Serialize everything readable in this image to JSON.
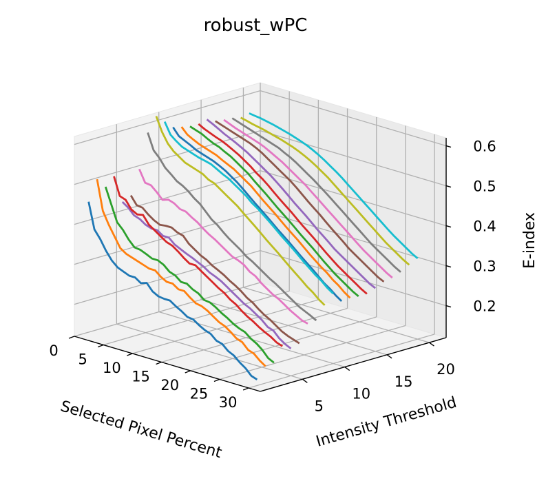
{
  "chart_data": {
    "type": "line",
    "projection": "3d",
    "title": "robust_wPC",
    "xlabel": "Selected Pixel Percent",
    "ylabel": "Intensity Threshold",
    "zlabel": "E-index",
    "xticks": [
      0,
      5,
      10,
      15,
      20,
      25,
      30
    ],
    "yticks": [
      5,
      10,
      15,
      20
    ],
    "zticks": [
      0.2,
      0.3,
      0.4,
      0.5,
      0.6
    ],
    "xlim": [
      0,
      32
    ],
    "ylim": [
      0,
      22
    ],
    "zlim": [
      0.12,
      0.62
    ],
    "grid": true,
    "x": [
      1,
      2,
      3,
      4,
      5,
      6,
      7,
      8,
      9,
      10,
      11,
      12,
      13,
      14,
      15,
      16,
      17,
      18,
      19,
      20,
      21,
      22,
      23,
      24,
      25,
      26,
      27,
      28,
      29,
      30
    ],
    "series": [
      {
        "intensity_threshold": 1,
        "color": "#1f77b4",
        "values": [
          0.455,
          0.39,
          0.37,
          0.345,
          0.325,
          0.312,
          0.306,
          0.3,
          0.3,
          0.29,
          0.295,
          0.278,
          0.27,
          0.268,
          0.268,
          0.258,
          0.25,
          0.24,
          0.238,
          0.228,
          0.22,
          0.215,
          0.202,
          0.198,
          0.185,
          0.178,
          0.165,
          0.155,
          0.14,
          0.135
        ]
      },
      {
        "intensity_threshold": 2,
        "color": "#ff7f0e",
        "values": [
          0.505,
          0.43,
          0.4,
          0.375,
          0.35,
          0.34,
          0.335,
          0.33,
          0.325,
          0.32,
          0.32,
          0.308,
          0.3,
          0.3,
          0.29,
          0.29,
          0.278,
          0.268,
          0.265,
          0.258,
          0.248,
          0.238,
          0.232,
          0.222,
          0.21,
          0.205,
          0.19,
          0.185,
          0.172,
          0.162
        ]
      },
      {
        "intensity_threshold": 3,
        "color": "#2ca02c",
        "values": [
          0.48,
          0.44,
          0.4,
          0.385,
          0.365,
          0.35,
          0.348,
          0.342,
          0.335,
          0.335,
          0.328,
          0.315,
          0.31,
          0.298,
          0.298,
          0.288,
          0.282,
          0.27,
          0.268,
          0.26,
          0.25,
          0.242,
          0.232,
          0.225,
          0.22,
          0.208,
          0.2,
          0.188,
          0.172,
          0.165
        ]
      },
      {
        "intensity_threshold": 4,
        "color": "#d62728",
        "values": [
          0.5,
          0.455,
          0.45,
          0.43,
          0.422,
          0.425,
          0.405,
          0.395,
          0.385,
          0.375,
          0.37,
          0.36,
          0.348,
          0.338,
          0.338,
          0.328,
          0.318,
          0.308,
          0.298,
          0.29,
          0.278,
          0.27,
          0.258,
          0.248,
          0.24,
          0.23,
          0.222,
          0.215,
          0.205,
          0.2
        ]
      },
      {
        "intensity_threshold": 5,
        "color": "#9467bd",
        "values": [
          0.43,
          0.42,
          0.405,
          0.4,
          0.39,
          0.385,
          0.385,
          0.375,
          0.375,
          0.362,
          0.355,
          0.348,
          0.342,
          0.335,
          0.328,
          0.318,
          0.312,
          0.305,
          0.295,
          0.285,
          0.275,
          0.265,
          0.258,
          0.248,
          0.238,
          0.225,
          0.22,
          0.205,
          0.195,
          0.188
        ]
      },
      {
        "intensity_threshold": 6,
        "color": "#8c564b",
        "values": [
          0.44,
          0.42,
          0.418,
          0.405,
          0.395,
          0.388,
          0.39,
          0.39,
          0.382,
          0.378,
          0.362,
          0.352,
          0.342,
          0.335,
          0.325,
          0.318,
          0.31,
          0.3,
          0.292,
          0.282,
          0.27,
          0.262,
          0.25,
          0.24,
          0.232,
          0.222,
          0.212,
          0.205,
          0.2,
          0.195
        ]
      },
      {
        "intensity_threshold": 7,
        "color": "#e377c2",
        "values": [
          0.5,
          0.47,
          0.468,
          0.455,
          0.44,
          0.445,
          0.44,
          0.43,
          0.428,
          0.418,
          0.41,
          0.398,
          0.388,
          0.38,
          0.37,
          0.36,
          0.35,
          0.345,
          0.338,
          0.325,
          0.318,
          0.305,
          0.295,
          0.285,
          0.278,
          0.268,
          0.258,
          0.25,
          0.242,
          0.238
        ]
      },
      {
        "intensity_threshold": 8,
        "color": "#7f7f7f",
        "values": [
          0.585,
          0.545,
          0.53,
          0.51,
          0.498,
          0.485,
          0.478,
          0.468,
          0.455,
          0.445,
          0.43,
          0.415,
          0.405,
          0.392,
          0.38,
          0.37,
          0.36,
          0.348,
          0.34,
          0.33,
          0.32,
          0.31,
          0.302,
          0.292,
          0.282,
          0.272,
          0.262,
          0.255,
          0.248,
          0.24
        ]
      },
      {
        "intensity_threshold": 9,
        "color": "#bcbd22",
        "values": [
          0.62,
          0.585,
          0.56,
          0.545,
          0.535,
          0.525,
          0.52,
          0.515,
          0.51,
          0.5,
          0.495,
          0.485,
          0.475,
          0.465,
          0.455,
          0.442,
          0.43,
          0.418,
          0.405,
          0.392,
          0.38,
          0.368,
          0.355,
          0.342,
          0.33,
          0.318,
          0.305,
          0.295,
          0.282,
          0.272
        ]
      },
      {
        "intensity_threshold": 10,
        "color": "#17becf",
        "values": [
          0.6,
          0.572,
          0.56,
          0.55,
          0.545,
          0.54,
          0.535,
          0.532,
          0.528,
          0.52,
          0.512,
          0.505,
          0.495,
          0.485,
          0.475,
          0.462,
          0.452,
          0.44,
          0.428,
          0.415,
          0.402,
          0.39,
          0.378,
          0.365,
          0.352,
          0.34,
          0.328,
          0.318,
          0.305,
          0.295
        ]
      },
      {
        "intensity_threshold": 11,
        "color": "#1f77b4",
        "values": [
          0.58,
          0.562,
          0.555,
          0.548,
          0.54,
          0.535,
          0.53,
          0.525,
          0.518,
          0.51,
          0.5,
          0.49,
          0.478,
          0.465,
          0.452,
          0.44,
          0.428,
          0.415,
          0.402,
          0.39,
          0.378,
          0.365,
          0.352,
          0.34,
          0.328,
          0.315,
          0.302,
          0.292,
          0.28,
          0.27
        ]
      },
      {
        "intensity_threshold": 12,
        "color": "#ff7f0e",
        "values": [
          0.575,
          0.56,
          0.552,
          0.545,
          0.54,
          0.535,
          0.53,
          0.522,
          0.515,
          0.508,
          0.498,
          0.488,
          0.478,
          0.465,
          0.452,
          0.44,
          0.428,
          0.415,
          0.402,
          0.39,
          0.378,
          0.365,
          0.352,
          0.34,
          0.328,
          0.318,
          0.305,
          0.295,
          0.282,
          0.272
        ]
      },
      {
        "intensity_threshold": 13,
        "color": "#2ca02c",
        "values": [
          0.57,
          0.565,
          0.56,
          0.552,
          0.545,
          0.54,
          0.532,
          0.525,
          0.515,
          0.505,
          0.495,
          0.482,
          0.47,
          0.458,
          0.445,
          0.432,
          0.42,
          0.408,
          0.395,
          0.382,
          0.37,
          0.358,
          0.345,
          0.332,
          0.32,
          0.308,
          0.298,
          0.288,
          0.278,
          0.27
        ]
      },
      {
        "intensity_threshold": 14,
        "color": "#d62728",
        "values": [
          0.57,
          0.562,
          0.556,
          0.55,
          0.545,
          0.538,
          0.53,
          0.522,
          0.512,
          0.502,
          0.49,
          0.48,
          0.468,
          0.455,
          0.442,
          0.43,
          0.418,
          0.405,
          0.392,
          0.38,
          0.368,
          0.355,
          0.342,
          0.33,
          0.318,
          0.308,
          0.298,
          0.288,
          0.278,
          0.27
        ]
      },
      {
        "intensity_threshold": 15,
        "color": "#9467bd",
        "values": [
          0.575,
          0.568,
          0.56,
          0.552,
          0.545,
          0.538,
          0.53,
          0.522,
          0.512,
          0.502,
          0.492,
          0.482,
          0.47,
          0.458,
          0.445,
          0.432,
          0.42,
          0.408,
          0.395,
          0.382,
          0.37,
          0.358,
          0.345,
          0.335,
          0.325,
          0.315,
          0.305,
          0.295,
          0.285,
          0.278
        ]
      },
      {
        "intensity_threshold": 16,
        "color": "#8c564b",
        "values": [
          0.565,
          0.56,
          0.555,
          0.55,
          0.545,
          0.54,
          0.535,
          0.528,
          0.52,
          0.51,
          0.5,
          0.49,
          0.48,
          0.47,
          0.458,
          0.445,
          0.432,
          0.42,
          0.408,
          0.395,
          0.382,
          0.37,
          0.358,
          0.345,
          0.335,
          0.325,
          0.315,
          0.305,
          0.295,
          0.288
        ]
      },
      {
        "intensity_threshold": 17,
        "color": "#e377c2",
        "values": [
          0.562,
          0.556,
          0.55,
          0.545,
          0.54,
          0.535,
          0.53,
          0.524,
          0.516,
          0.508,
          0.5,
          0.49,
          0.48,
          0.47,
          0.46,
          0.448,
          0.436,
          0.424,
          0.412,
          0.4,
          0.388,
          0.376,
          0.364,
          0.352,
          0.34,
          0.33,
          0.32,
          0.31,
          0.3,
          0.292
        ]
      },
      {
        "intensity_threshold": 18,
        "color": "#7f7f7f",
        "values": [
          0.56,
          0.555,
          0.55,
          0.545,
          0.54,
          0.535,
          0.53,
          0.525,
          0.52,
          0.512,
          0.505,
          0.496,
          0.486,
          0.476,
          0.466,
          0.455,
          0.444,
          0.432,
          0.42,
          0.408,
          0.396,
          0.384,
          0.372,
          0.36,
          0.348,
          0.338,
          0.328,
          0.318,
          0.308,
          0.3
        ]
      },
      {
        "intensity_threshold": 19,
        "color": "#bcbd22",
        "values": [
          0.555,
          0.552,
          0.548,
          0.545,
          0.542,
          0.538,
          0.534,
          0.53,
          0.525,
          0.52,
          0.514,
          0.507,
          0.499,
          0.49,
          0.48,
          0.47,
          0.458,
          0.446,
          0.434,
          0.422,
          0.41,
          0.398,
          0.386,
          0.374,
          0.362,
          0.35,
          0.34,
          0.33,
          0.32,
          0.312
        ]
      },
      {
        "intensity_threshold": 20,
        "color": "#17becf",
        "values": [
          0.56,
          0.558,
          0.556,
          0.553,
          0.55,
          0.546,
          0.542,
          0.538,
          0.533,
          0.528,
          0.522,
          0.515,
          0.507,
          0.498,
          0.488,
          0.478,
          0.467,
          0.455,
          0.443,
          0.431,
          0.419,
          0.407,
          0.395,
          0.383,
          0.371,
          0.36,
          0.35,
          0.34,
          0.33,
          0.322
        ]
      }
    ]
  }
}
